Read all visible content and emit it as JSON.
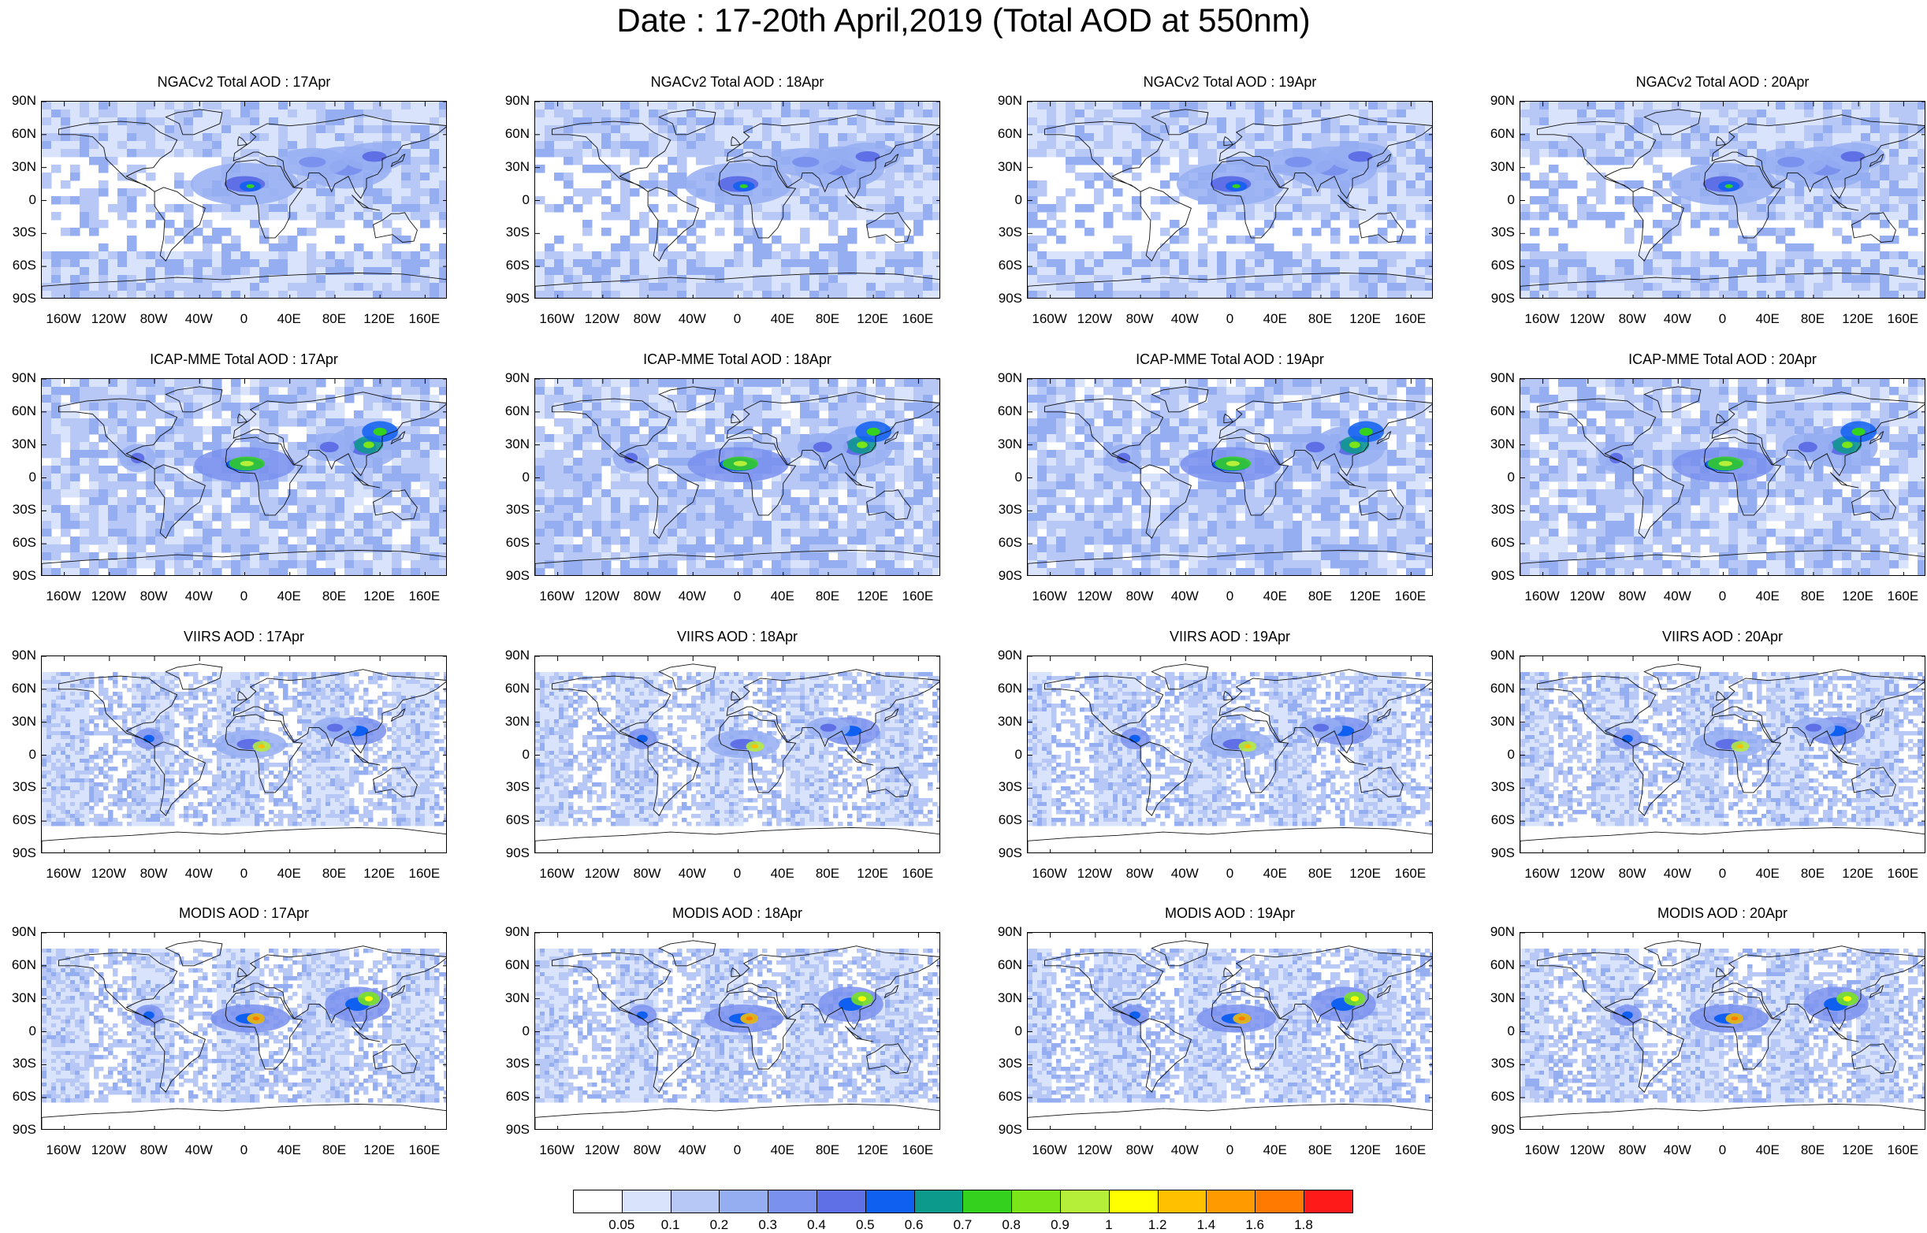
{
  "figure_title": "Date : 17-20th April,2019 (Total AOD at 550nm)",
  "chart_data": {
    "type": "heatmap",
    "title": "Date : 17-20th April,2019 (Total AOD at 550nm)",
    "variable": "Total AOD at 550nm",
    "x_ticks": [
      "160W",
      "120W",
      "80W",
      "40W",
      "0",
      "40E",
      "80E",
      "120E",
      "160E"
    ],
    "y_ticks": [
      "90N",
      "60N",
      "30N",
      "0",
      "30S",
      "60S",
      "90S"
    ],
    "xlim": [
      -180,
      180
    ],
    "ylim": [
      -90,
      90
    ],
    "panels": [
      {
        "title": "NGACv2 Total AOD : 17Apr",
        "model": "NGACv2",
        "date": "17Apr"
      },
      {
        "title": "NGACv2 Total AOD : 18Apr",
        "model": "NGACv2",
        "date": "18Apr"
      },
      {
        "title": "NGACv2 Total AOD : 19Apr",
        "model": "NGACv2",
        "date": "19Apr"
      },
      {
        "title": "NGACv2 Total AOD : 20Apr",
        "model": "NGACv2",
        "date": "20Apr"
      },
      {
        "title": "ICAP-MME Total AOD : 17Apr",
        "model": "ICAP-MME",
        "date": "17Apr"
      },
      {
        "title": "ICAP-MME Total AOD : 18Apr",
        "model": "ICAP-MME",
        "date": "18Apr"
      },
      {
        "title": "ICAP-MME Total AOD : 19Apr",
        "model": "ICAP-MME",
        "date": "19Apr"
      },
      {
        "title": "ICAP-MME Total AOD : 20Apr",
        "model": "ICAP-MME",
        "date": "20Apr"
      },
      {
        "title": "VIIRS AOD : 17Apr",
        "model": "VIIRS",
        "date": "17Apr"
      },
      {
        "title": "VIIRS AOD : 18Apr",
        "model": "VIIRS",
        "date": "18Apr"
      },
      {
        "title": "VIIRS AOD : 19Apr",
        "model": "VIIRS",
        "date": "19Apr"
      },
      {
        "title": "VIIRS AOD : 20Apr",
        "model": "VIIRS",
        "date": "20Apr"
      },
      {
        "title": "MODIS AOD : 17Apr",
        "model": "MODIS",
        "date": "17Apr"
      },
      {
        "title": "MODIS AOD : 18Apr",
        "model": "MODIS",
        "date": "18Apr"
      },
      {
        "title": "MODIS AOD : 19Apr",
        "model": "MODIS",
        "date": "19Apr"
      },
      {
        "title": "MODIS AOD : 20Apr",
        "model": "MODIS",
        "date": "20Apr"
      }
    ],
    "colorbar": {
      "labels": [
        "0.05",
        "0.1",
        "0.2",
        "0.3",
        "0.4",
        "0.5",
        "0.6",
        "0.7",
        "0.8",
        "0.9",
        "1",
        "1.2",
        "1.4",
        "1.6",
        "1.8"
      ],
      "colors": [
        "#ffffff",
        "#d9e3fb",
        "#b8c8f6",
        "#95aef2",
        "#7a91ee",
        "#5f6fe6",
        "#0f5ff0",
        "#0c9a8c",
        "#34d11f",
        "#7ae619",
        "#b6ef3a",
        "#ffff00",
        "#ffc000",
        "#ff9a00",
        "#ff7a00",
        "#ff1a1a"
      ]
    }
  }
}
